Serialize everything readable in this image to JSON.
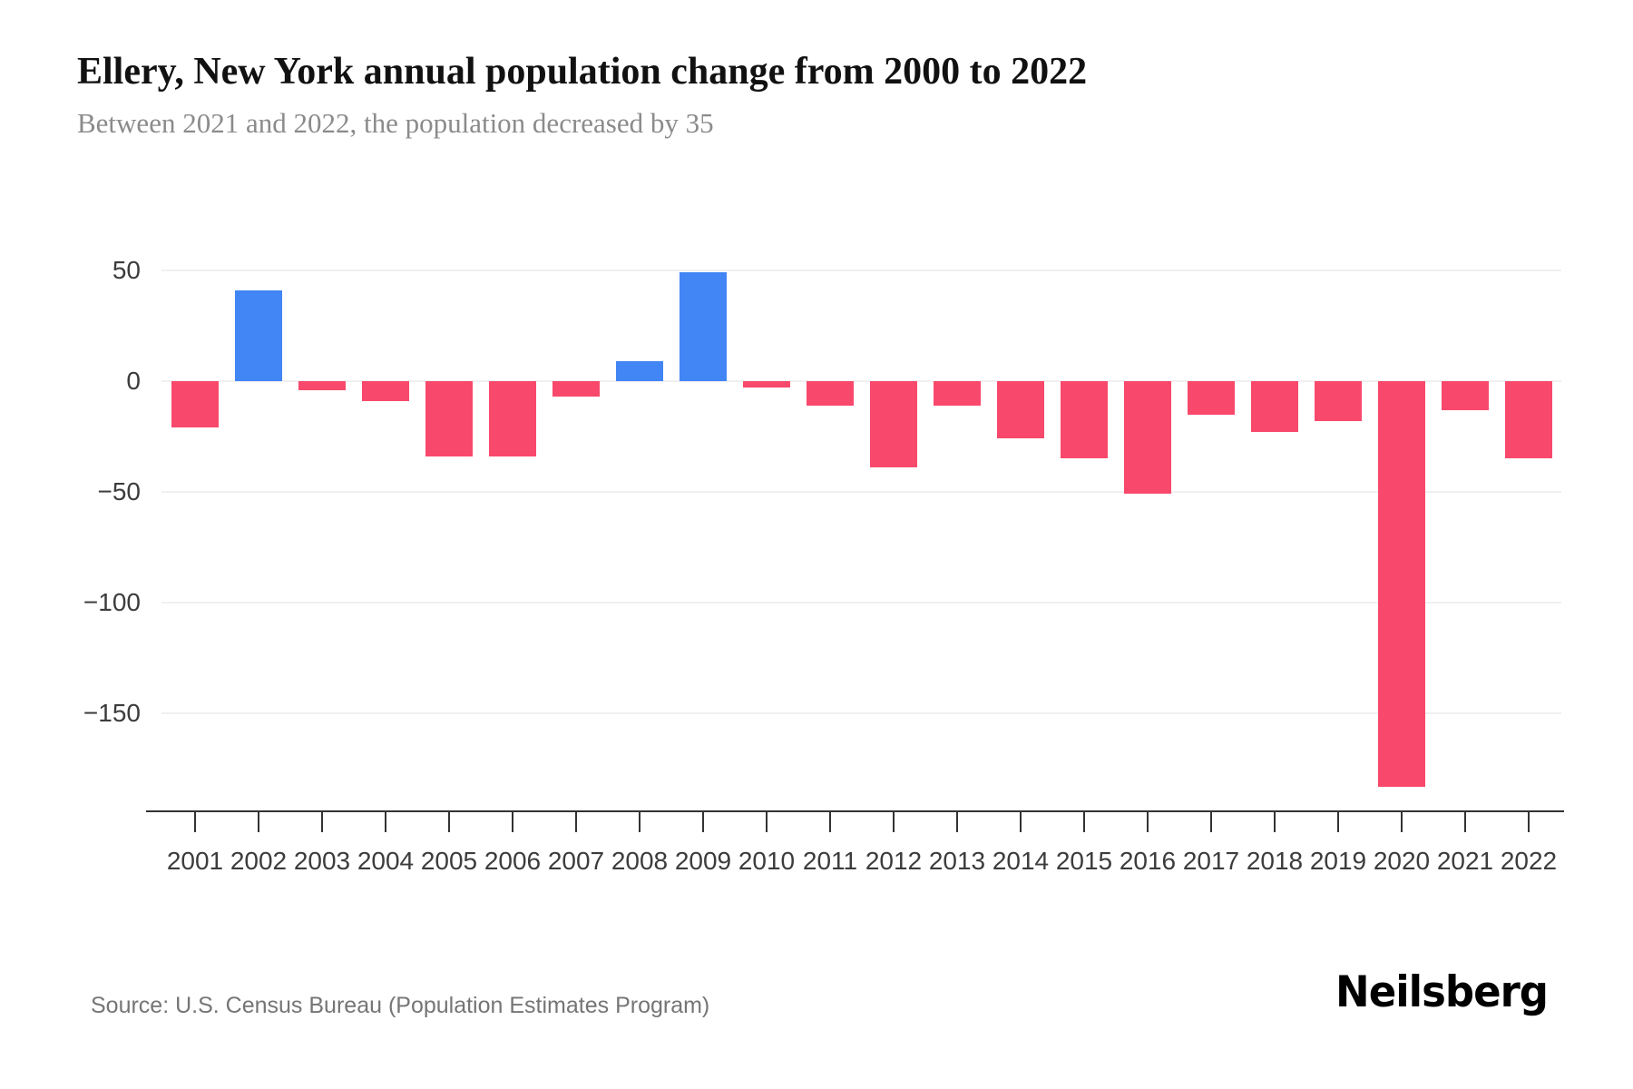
{
  "page": {
    "source": "Source: U.S. Census Bureau (Population Estimates Program)",
    "brand": "Neilsberg"
  },
  "chart_data": {
    "type": "bar",
    "title": "Ellery, New York annual population change from 2000 to 2022",
    "subtitle": "Between 2021 and 2022, the population decreased by 35",
    "categories": [
      "2001",
      "2002",
      "2003",
      "2004",
      "2005",
      "2006",
      "2007",
      "2008",
      "2009",
      "2010",
      "2011",
      "2012",
      "2013",
      "2014",
      "2015",
      "2016",
      "2017",
      "2018",
      "2019",
      "2020",
      "2021",
      "2022"
    ],
    "values": [
      -21,
      41,
      -4,
      -9,
      -34,
      -34,
      -7,
      9,
      49,
      -3,
      -11,
      -39,
      -11,
      -26,
      -35,
      -51,
      -15,
      -23,
      -18,
      -183,
      -13,
      -35
    ],
    "xlabel": "",
    "ylabel": "",
    "yticks": [
      {
        "value": 50,
        "label": "50"
      },
      {
        "value": 0,
        "label": "0"
      },
      {
        "value": -50,
        "label": "−50"
      },
      {
        "value": -100,
        "label": "−100"
      },
      {
        "value": -150,
        "label": "−150"
      }
    ],
    "ylim": [
      -195,
      60
    ],
    "grid": true,
    "legend": "none",
    "colors": {
      "positive": "#4285F4",
      "negative": "#F8496C",
      "gridline": "#F0F0F0",
      "axis": "#333333",
      "tick_label": "#3C3C3C",
      "title": "#111111",
      "subtitle": "#8B8B8B",
      "source": "#757575"
    }
  }
}
